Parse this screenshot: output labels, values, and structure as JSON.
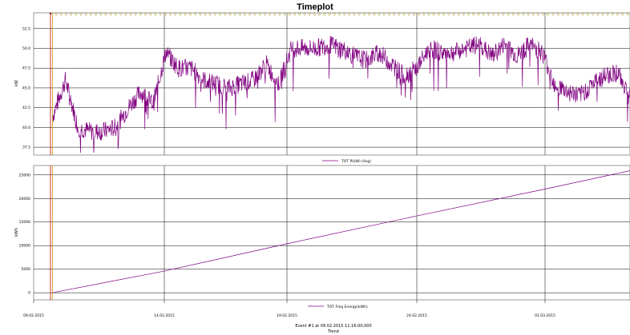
{
  "title": "Timeplot",
  "footer": {
    "event": "Event #1 at 09.02.2015 11:16:00,000",
    "trend": "Trend"
  },
  "colors": {
    "series": "#800080",
    "marker_red": "#c00000",
    "marker_yellow": "#c8a000",
    "grid": "#000000"
  },
  "chart_data": [
    {
      "type": "line",
      "title": "",
      "ylabel": "kW",
      "ylim": [
        36.5,
        54.5
      ],
      "y_ticks": [
        "37.5",
        "40.0",
        "42.5",
        "45.0",
        "47.5",
        "50.0",
        "52.5"
      ],
      "x_ticks": [
        "09.02.2015",
        "14.02.2015",
        "19.02.2015",
        "24.02.2015",
        "01.03.2015"
      ],
      "legend": "TOT P(kW) (Avg)",
      "series": [
        {
          "name": "TOT P(kW) (Avg)",
          "x": [
            "09.02",
            "09.5",
            "10.0",
            "10.5",
            "11.0",
            "11.5",
            "12.0",
            "12.5",
            "13.0",
            "13.5",
            "14.0",
            "14.5",
            "15.0",
            "15.5",
            "16.0",
            "16.5",
            "17.0",
            "17.5",
            "18.0",
            "18.5",
            "19.0",
            "19.5",
            "20.0",
            "20.5",
            "21.0",
            "21.5",
            "22.0",
            "22.5",
            "23.0",
            "23.5",
            "24.0",
            "24.5",
            "25.0",
            "25.5",
            "26.0",
            "26.5",
            "27.0",
            "27.5",
            "28.0",
            "28.5",
            "01.03",
            "01.5",
            "02.0",
            "02.5",
            "03.0",
            "03.5",
            "04.0"
          ],
          "values": [
            41.5,
            46.0,
            40.0,
            39.5,
            39.5,
            40.0,
            42.5,
            44.5,
            43.0,
            49.5,
            47.5,
            47.5,
            46.0,
            45.5,
            45.0,
            45.5,
            46.0,
            48.0,
            45.5,
            50.0,
            50.0,
            50.0,
            50.5,
            50.0,
            49.0,
            48.5,
            49.5,
            48.0,
            46.5,
            47.5,
            50.0,
            49.5,
            49.5,
            50.0,
            50.5,
            49.0,
            50.5,
            49.0,
            50.5,
            49.5,
            45.5,
            44.5,
            44.0,
            45.5,
            46.5,
            47.0,
            44.0
          ]
        }
      ]
    },
    {
      "type": "line",
      "title": "",
      "ylabel": "kWh",
      "ylim": [
        -1500,
        27000
      ],
      "y_ticks": [
        "0",
        "5000",
        "10000",
        "15000",
        "20000",
        "25000"
      ],
      "x_ticks": [
        "09.02.2015",
        "14.02.2015",
        "19.02.2015",
        "24.02.2015",
        "01.03.2015"
      ],
      "legend": "TOT Freq Energy(kWh)",
      "series": [
        {
          "name": "TOT Freq Energy(kWh)",
          "x": [
            "09.02",
            "14.02",
            "19.02",
            "24.02",
            "01.03",
            "04.03"
          ],
          "values": [
            0,
            4600,
            10400,
            16300,
            22000,
            25900
          ]
        }
      ]
    }
  ]
}
